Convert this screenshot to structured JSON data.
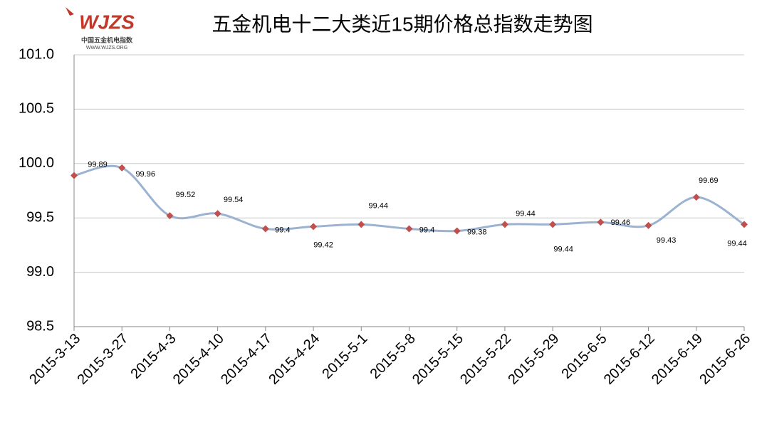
{
  "logo": {
    "name": "WJZS",
    "subtitle": "中国五金机电指数",
    "url": "WWW.WJZS.ORG"
  },
  "chart_data": {
    "type": "line",
    "title": "五金机电十二大类近15期价格总指数走势图",
    "categories": [
      "2015-3-13",
      "2015-3-27",
      "2015-4-3",
      "2015-4-10",
      "2015-4-17",
      "2015-4-24",
      "2015-5-1",
      "2015-5-8",
      "2015-5-15",
      "2015-5-22",
      "2015-5-29",
      "2015-6-5",
      "2015-6-12",
      "2015-6-19",
      "2015-6-26"
    ],
    "values": [
      99.89,
      99.96,
      99.52,
      99.54,
      99.4,
      99.42,
      99.44,
      99.4,
      99.38,
      99.44,
      99.44,
      99.46,
      99.43,
      99.69,
      99.44
    ],
    "color": "#9bb3d1",
    "marker_color": "#c0504d",
    "ylim": [
      98.5,
      101.0
    ],
    "yticks": [
      {
        "value": 98.5,
        "label": "98.5"
      },
      {
        "value": 99.0,
        "label": "99.0"
      },
      {
        "value": 99.5,
        "label": "99.5"
      },
      {
        "value": 100.0,
        "label": "100.0"
      },
      {
        "value": 100.5,
        "label": "100.5"
      },
      {
        "value": 101.0,
        "label": "101.0"
      }
    ],
    "grid": true
  }
}
